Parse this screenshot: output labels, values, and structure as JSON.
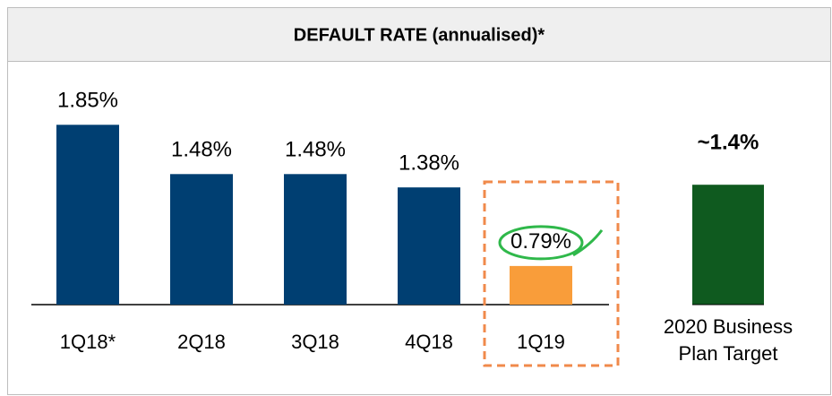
{
  "chart_data": {
    "type": "bar",
    "title": "DEFAULT RATE (annualised)*",
    "categories": [
      "1Q18*",
      "2Q18",
      "3Q18",
      "4Q18",
      "1Q19"
    ],
    "values": [
      1.85,
      1.48,
      1.48,
      1.38,
      0.79
    ],
    "value_labels": [
      "1.85%",
      "1.48%",
      "1.48%",
      "1.38%",
      "0.79%"
    ],
    "colors": [
      "#003f72",
      "#003f72",
      "#003f72",
      "#003f72",
      "#f99d3a"
    ],
    "ylim": [
      0.5,
      2.0
    ],
    "target": {
      "label": "2020 Business Plan Target",
      "value": 1.4,
      "value_label": "~1.4%",
      "color": "#0f5a1f"
    }
  }
}
